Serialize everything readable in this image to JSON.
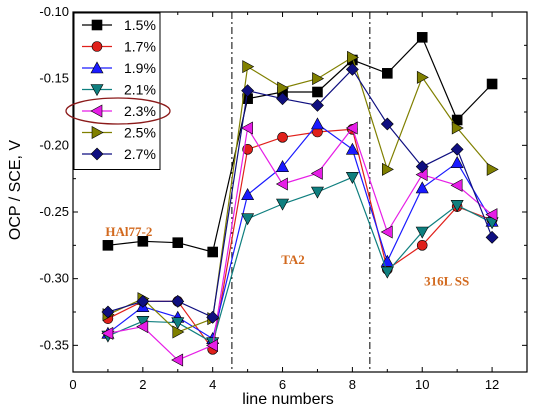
{
  "chart_data": {
    "type": "line",
    "xlabel": "line numbers",
    "ylabel": "OCP / SCE, V",
    "xlim": [
      0,
      13
    ],
    "ylim": [
      -0.37,
      -0.1
    ],
    "xticks": [
      0,
      2,
      4,
      6,
      8,
      10,
      12
    ],
    "yticks": [
      -0.35,
      -0.3,
      -0.25,
      -0.2,
      -0.15,
      -0.1
    ],
    "ytick_labels": [
      "-0.35",
      "-0.30",
      "-0.25",
      "-0.20",
      "-0.15",
      "-0.10"
    ],
    "x": [
      1,
      2,
      3,
      4,
      5,
      6,
      7,
      8,
      9,
      10,
      11,
      12
    ],
    "series": [
      {
        "name": "1.5%",
        "color": "#000000",
        "marker": "square",
        "values": [
          -0.275,
          -0.272,
          -0.273,
          -0.28,
          -0.165,
          -0.16,
          -0.16,
          -0.136,
          -0.146,
          -0.119,
          -0.181,
          -0.154
        ]
      },
      {
        "name": "1.7%",
        "color": "#e0201b",
        "marker": "circle",
        "values": [
          -0.33,
          -0.317,
          -0.317,
          -0.353,
          -0.203,
          -0.194,
          -0.19,
          -0.188,
          -0.293,
          -0.275,
          -0.246,
          -0.256
        ]
      },
      {
        "name": "1.9%",
        "color": "#1a1aff",
        "marker": "triangle-up",
        "values": [
          -0.341,
          -0.321,
          -0.329,
          -0.345,
          -0.237,
          -0.216,
          -0.184,
          -0.203,
          -0.287,
          -0.232,
          -0.213,
          -0.257
        ]
      },
      {
        "name": "2.1%",
        "color": "#0f7f7f",
        "marker": "triangle-down",
        "values": [
          -0.343,
          -0.332,
          -0.333,
          -0.348,
          -0.255,
          -0.244,
          -0.235,
          -0.224,
          -0.295,
          -0.265,
          -0.245,
          -0.258
        ]
      },
      {
        "name": "2.3%",
        "color": "#e61ee6",
        "marker": "triangle-left",
        "values": [
          -0.341,
          -0.336,
          -0.361,
          -0.35,
          -0.187,
          -0.229,
          -0.221,
          -0.187,
          -0.265,
          -0.222,
          -0.23,
          -0.252
        ]
      },
      {
        "name": "2.5%",
        "color": "#808000",
        "marker": "triangle-right",
        "values": [
          -0.327,
          -0.315,
          -0.34,
          -0.33,
          -0.141,
          -0.157,
          -0.15,
          -0.134,
          -0.218,
          -0.149,
          -0.187,
          -0.218
        ]
      },
      {
        "name": "2.7%",
        "color": "#0f0f80",
        "marker": "diamond",
        "values": [
          -0.325,
          -0.317,
          -0.317,
          -0.329,
          -0.159,
          -0.165,
          -0.17,
          -0.143,
          -0.184,
          -0.216,
          -0.203,
          -0.269
        ]
      }
    ],
    "vlines": [
      4.55,
      8.5
    ],
    "annotations": [
      {
        "text": "HAl77-2",
        "x": 1.6,
        "y": -0.268
      },
      {
        "text": "TA2",
        "x": 6.3,
        "y": -0.289
      },
      {
        "text": "316L SS",
        "x": 10.7,
        "y": -0.305
      }
    ],
    "highlighted_legend_entry": "2.3%",
    "legend_position": "top-left",
    "grid": false
  }
}
